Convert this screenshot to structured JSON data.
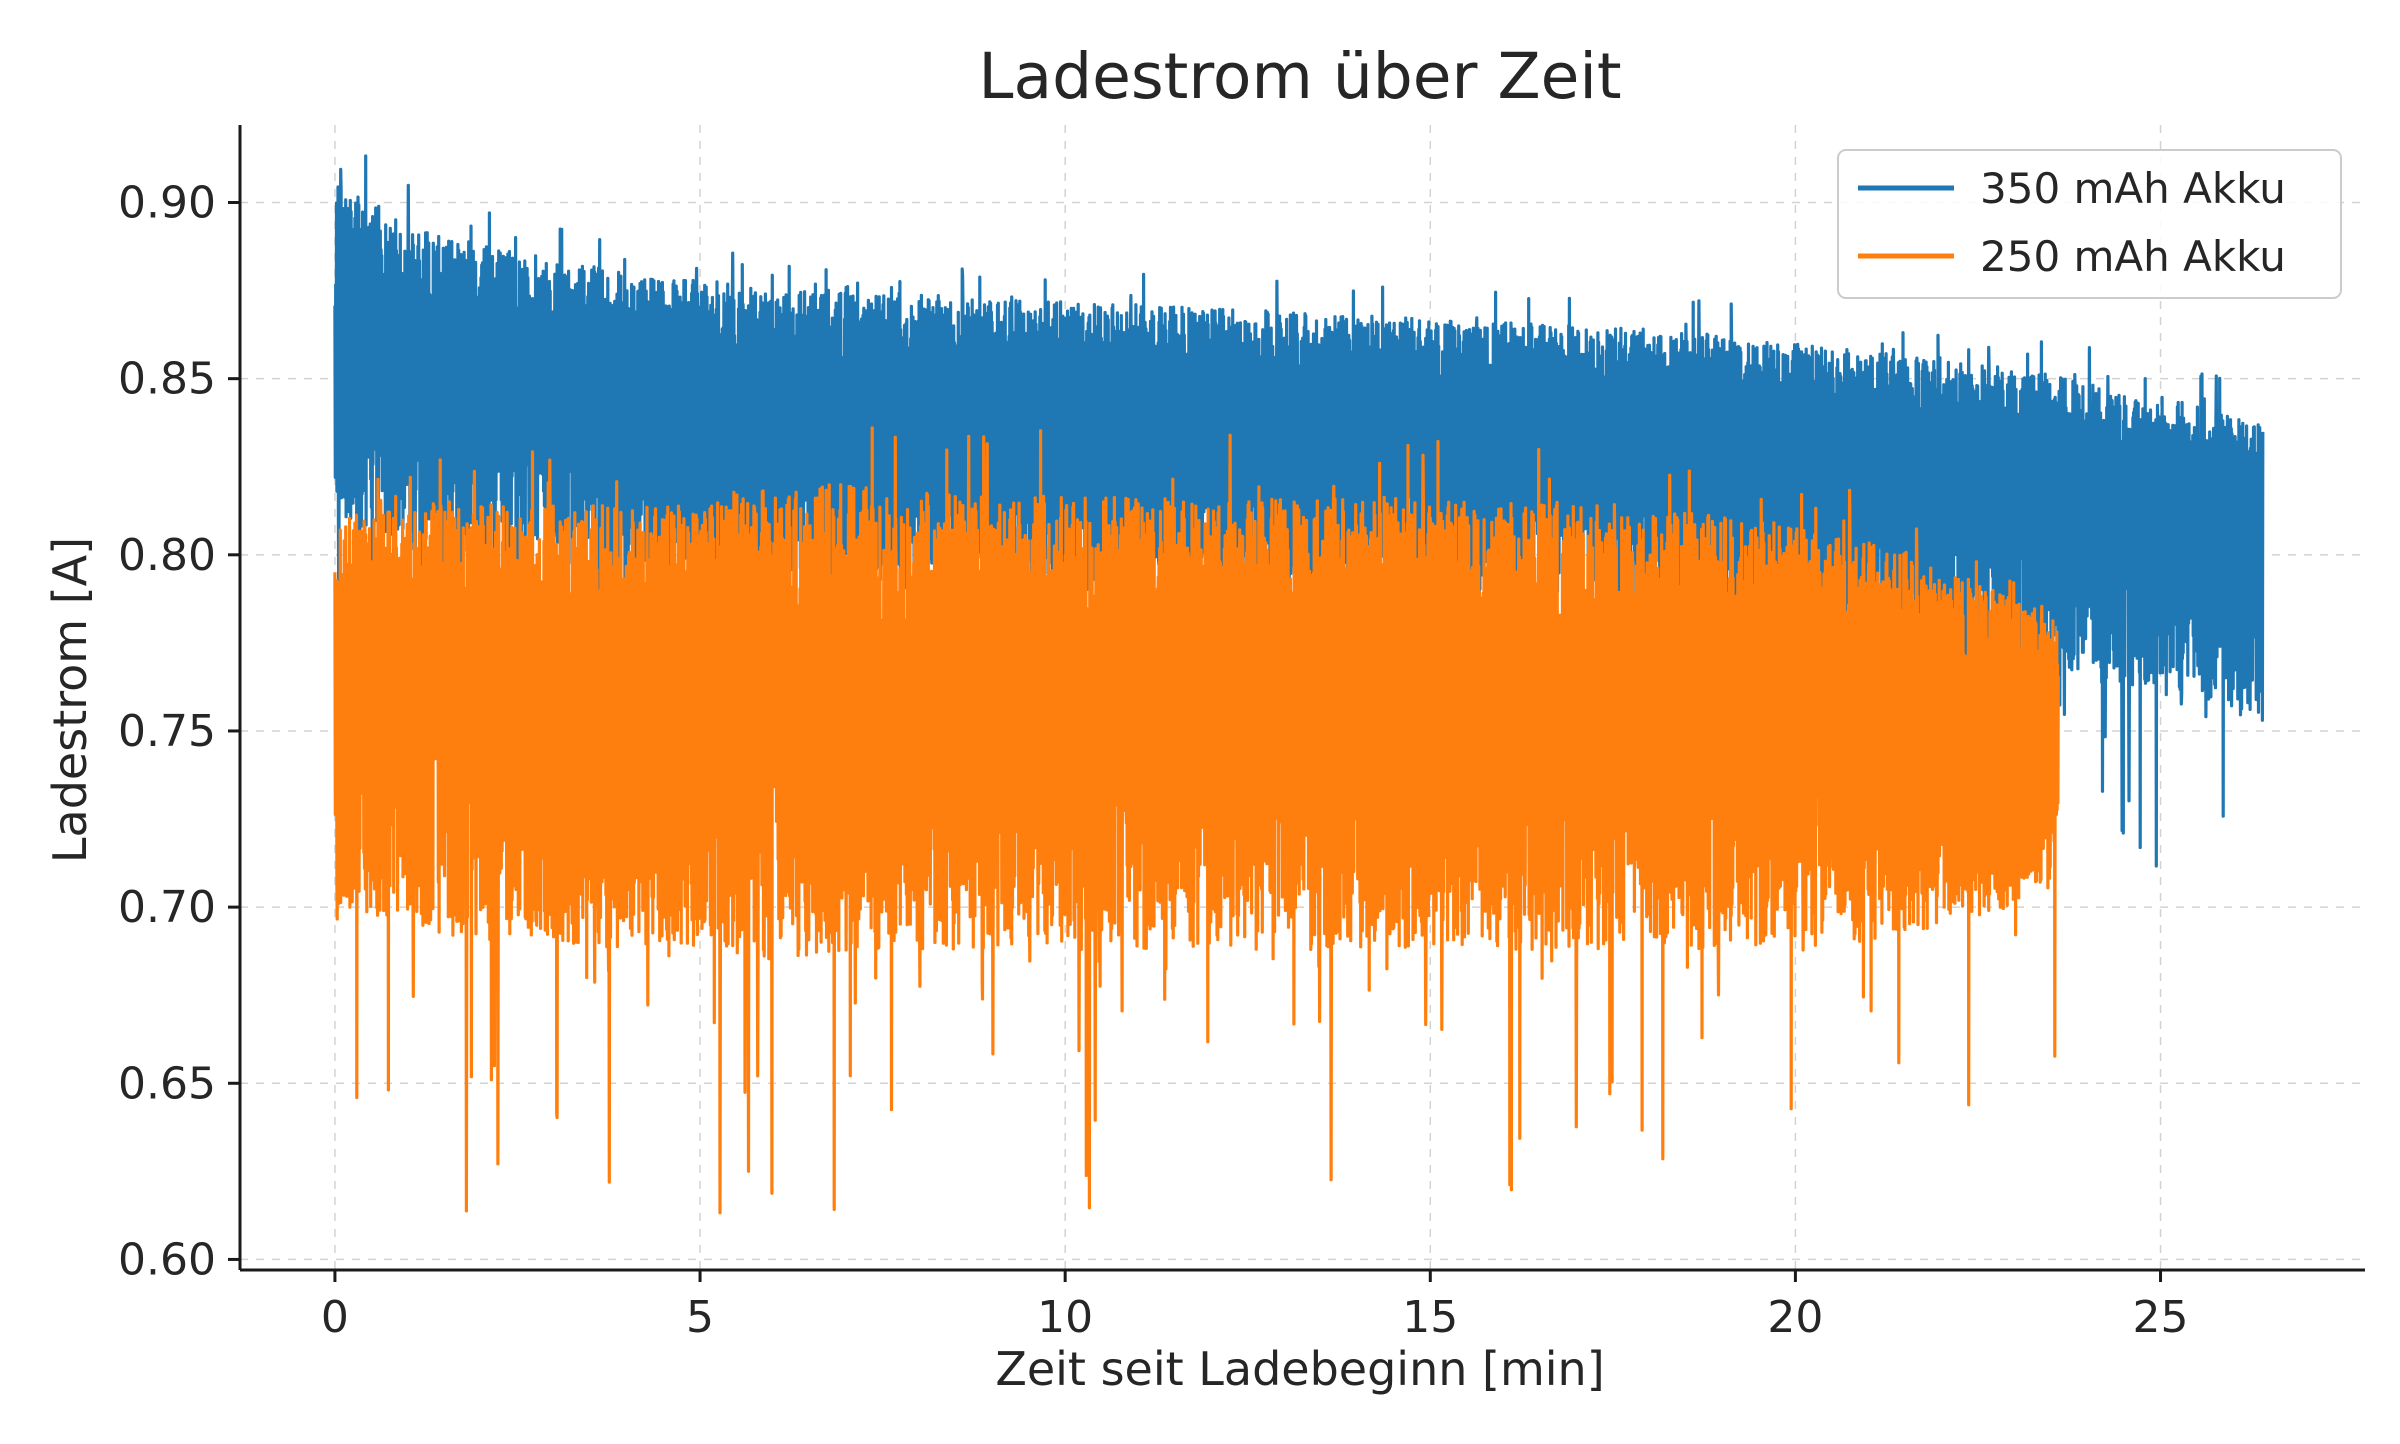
{
  "chart_data": {
    "type": "line",
    "title": "Ladestrom über Zeit",
    "xlabel": "Zeit seit Ladebeginn [min]",
    "ylabel": "Ladestrom [A]",
    "xlim": [
      -1.3,
      27.8
    ],
    "ylim": [
      0.597,
      0.922
    ],
    "x_ticks": [
      0,
      5,
      10,
      15,
      20,
      25
    ],
    "x_tick_labels": [
      "0",
      "5",
      "10",
      "15",
      "20",
      "25"
    ],
    "y_ticks": [
      0.6,
      0.65,
      0.7,
      0.75,
      0.8,
      0.85,
      0.9
    ],
    "y_tick_labels": [
      "0.60",
      "0.65",
      "0.70",
      "0.75",
      "0.80",
      "0.85",
      "0.90"
    ],
    "grid": true,
    "legend_position": "top-right",
    "series": [
      {
        "name": "350 mAh Akku",
        "color": "#1f77b4",
        "x": [
          0,
          1,
          2,
          3,
          4,
          5,
          6,
          7,
          8,
          9,
          10,
          11,
          12,
          13,
          14,
          15,
          16,
          17,
          18,
          19,
          20,
          21,
          22,
          23,
          24,
          25,
          26,
          26.4
        ],
        "y_center": [
          0.862,
          0.855,
          0.852,
          0.85,
          0.849,
          0.848,
          0.847,
          0.846,
          0.845,
          0.845,
          0.844,
          0.843,
          0.842,
          0.842,
          0.841,
          0.84,
          0.839,
          0.838,
          0.837,
          0.835,
          0.833,
          0.83,
          0.827,
          0.824,
          0.82,
          0.816,
          0.812,
          0.808
        ],
        "y_upper": [
          0.906,
          0.893,
          0.888,
          0.884,
          0.88,
          0.878,
          0.876,
          0.875,
          0.874,
          0.873,
          0.872,
          0.871,
          0.87,
          0.869,
          0.868,
          0.867,
          0.866,
          0.865,
          0.864,
          0.862,
          0.86,
          0.858,
          0.855,
          0.853,
          0.849,
          0.845,
          0.84,
          0.837
        ],
        "y_lower": [
          0.81,
          0.8,
          0.797,
          0.795,
          0.793,
          0.792,
          0.791,
          0.79,
          0.789,
          0.789,
          0.788,
          0.787,
          0.786,
          0.786,
          0.785,
          0.784,
          0.783,
          0.782,
          0.781,
          0.779,
          0.777,
          0.774,
          0.771,
          0.768,
          0.764,
          0.76,
          0.756,
          0.752
        ],
        "min_dip": 0.705
      },
      {
        "name": "250 mAh Akku",
        "color": "#ff7f0e",
        "x": [
          0,
          1,
          2,
          3,
          4,
          5,
          6,
          7,
          8,
          9,
          10,
          11,
          12,
          13,
          14,
          15,
          16,
          17,
          18,
          19,
          20,
          21,
          22,
          23,
          23.6
        ],
        "y_center": [
          0.765,
          0.764,
          0.764,
          0.763,
          0.763,
          0.763,
          0.763,
          0.763,
          0.763,
          0.763,
          0.763,
          0.763,
          0.763,
          0.763,
          0.763,
          0.763,
          0.762,
          0.762,
          0.762,
          0.761,
          0.76,
          0.759,
          0.757,
          0.755,
          0.753
        ],
        "y_upper": [
          0.81,
          0.815,
          0.815,
          0.814,
          0.814,
          0.814,
          0.82,
          0.82,
          0.818,
          0.817,
          0.817,
          0.817,
          0.816,
          0.816,
          0.818,
          0.815,
          0.815,
          0.815,
          0.812,
          0.812,
          0.808,
          0.805,
          0.797,
          0.788,
          0.778
        ],
        "y_lower": [
          0.7,
          0.695,
          0.69,
          0.69,
          0.688,
          0.688,
          0.685,
          0.688,
          0.688,
          0.688,
          0.69,
          0.688,
          0.688,
          0.688,
          0.688,
          0.688,
          0.688,
          0.688,
          0.688,
          0.688,
          0.69,
          0.69,
          0.695,
          0.7,
          0.705
        ],
        "min_dip": 0.611
      }
    ]
  }
}
